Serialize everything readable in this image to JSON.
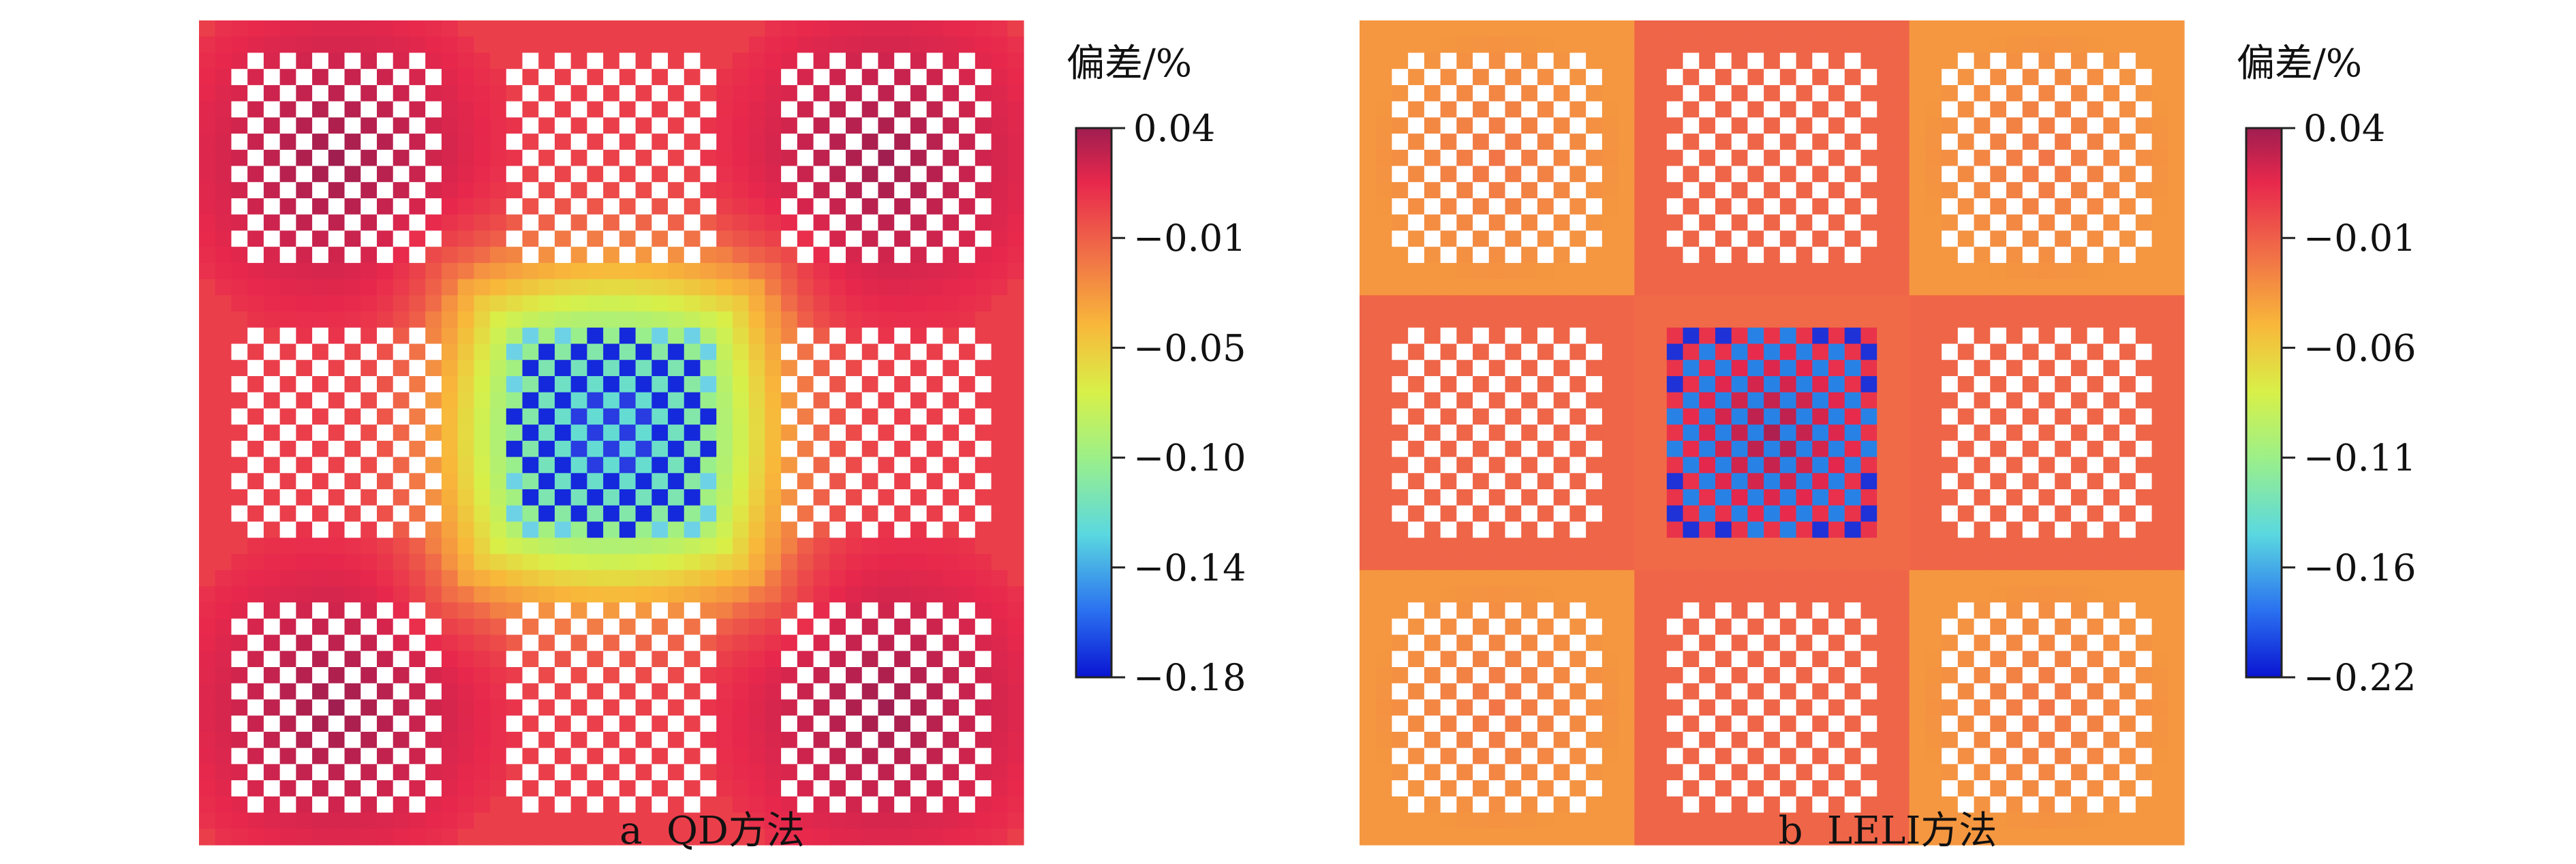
{
  "chart_data": [
    {
      "type": "heatmap",
      "panel_label": "a",
      "method": "QD方法",
      "caption": "a  QD方法",
      "colorbar_title": "偏差/%",
      "colorbar_ticks": [
        "0.04",
        "−0.01",
        "−0.05",
        "−0.10",
        "−0.14",
        "−0.18"
      ],
      "value_range": [
        -0.18,
        0.04
      ],
      "colormap": [
        "#0a14d2",
        "#2aa0f0",
        "#8cf0b8",
        "#d8f550",
        "#f7c040",
        "#f07048",
        "#e8284c",
        "#a01e50"
      ]
    },
    {
      "type": "heatmap",
      "panel_label": "b",
      "method": "LELI方法",
      "caption": "b  LELI方法",
      "colorbar_title": "偏差/%",
      "colorbar_ticks": [
        "0.04",
        "−0.01",
        "−0.06",
        "−0.11",
        "−0.16",
        "−0.22"
      ],
      "value_range": [
        -0.22,
        0.04
      ],
      "colormap": [
        "#0a14d2",
        "#2aa0f0",
        "#8cf0b8",
        "#d8f550",
        "#f7c040",
        "#f07048",
        "#e8284c",
        "#a01e50"
      ]
    }
  ]
}
